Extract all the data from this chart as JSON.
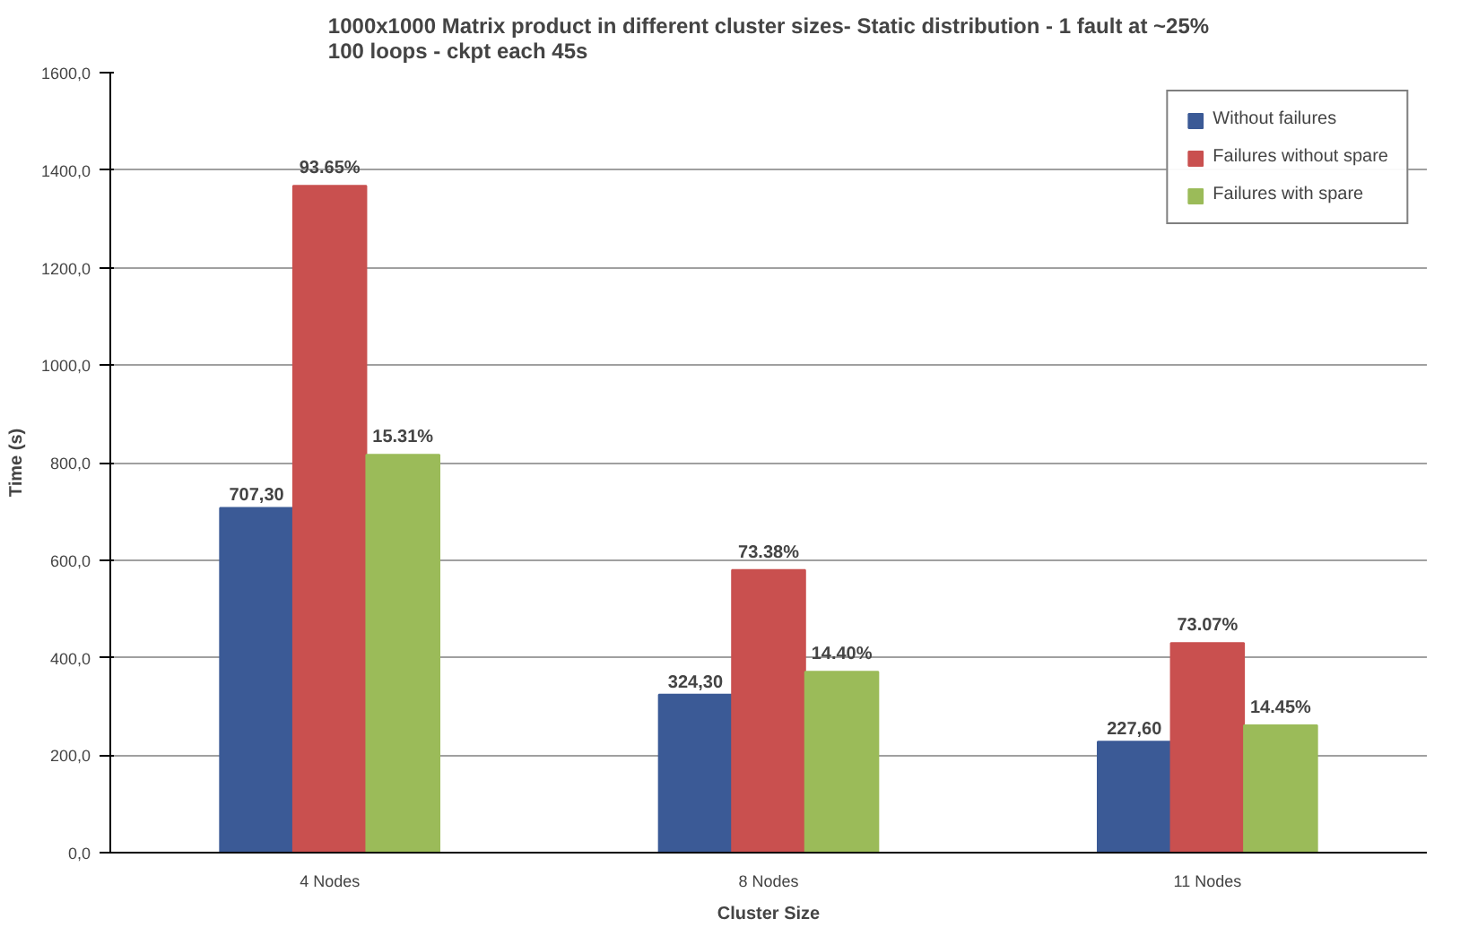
{
  "chart_data": {
    "type": "bar",
    "title": "1000x1000 Matrix product in different cluster sizes- Static distribution - 1 fault at ~25%\n100 loops - ckpt each 45s",
    "xlabel": "Cluster Size",
    "ylabel": "Time (s)",
    "categories": [
      "4 Nodes",
      "8 Nodes",
      "11 Nodes"
    ],
    "series": [
      {
        "name": "Without failures",
        "color": "#3b5a96",
        "values": [
          707.3,
          324.3,
          227.6
        ],
        "value_labels": [
          "707,30",
          "324,30",
          "227,60"
        ]
      },
      {
        "name": "Failures without spare",
        "color": "#c9504f",
        "values": [
          1368,
          580,
          430
        ]
      },
      {
        "name": "Failures with spare",
        "color": "#9bbb59",
        "values": [
          816,
          371,
          261
        ]
      }
    ],
    "annotations": [
      "93.65%",
      "73.38%",
      "73.07%",
      "15.31%",
      "14.40%",
      "14.45%"
    ],
    "ylim": [
      0,
      1600
    ],
    "yticks": [
      {
        "value": 0,
        "label": "0,0"
      },
      {
        "value": 200,
        "label": "200,0"
      },
      {
        "value": 400,
        "label": "400,0"
      },
      {
        "value": 600,
        "label": "600,0"
      },
      {
        "value": 800,
        "label": "800,0"
      },
      {
        "value": 1000,
        "label": "1000,0"
      },
      {
        "value": 1200,
        "label": "1200,0"
      },
      {
        "value": 1400,
        "label": "1400,0"
      },
      {
        "value": 1600,
        "label": "1600,0"
      }
    ],
    "grid": "y",
    "legend": "top right"
  }
}
